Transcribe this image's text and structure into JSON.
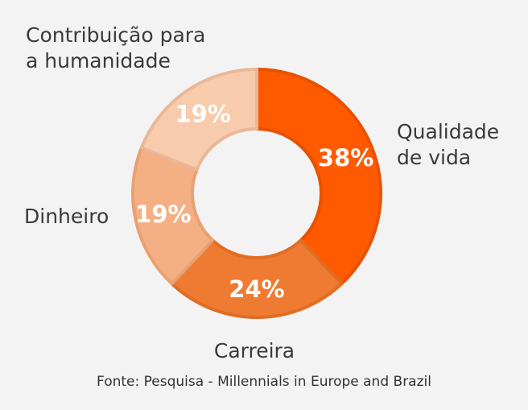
{
  "chart_data": {
    "type": "pie",
    "donut": true,
    "title": "",
    "categories": [
      "Qualidade de vida",
      "Carreira",
      "Dinheiro",
      "Contribuição para a humanidade"
    ],
    "values": [
      38,
      24,
      19,
      19
    ],
    "value_labels": [
      "38%",
      "24%",
      "19%",
      "19%"
    ],
    "category_lines": [
      [
        "Qualidade",
        "de vida"
      ],
      [
        "Carreira"
      ],
      [
        "Dinheiro"
      ],
      [
        "Contribuição para",
        "a humanidade"
      ]
    ],
    "colors": [
      "#ff5a00",
      "#ee7b31",
      "#f4b084",
      "#f7cbac"
    ],
    "legend": "none"
  },
  "source": "Fonte: Pesquisa - Millennials in Europe and Brazil"
}
